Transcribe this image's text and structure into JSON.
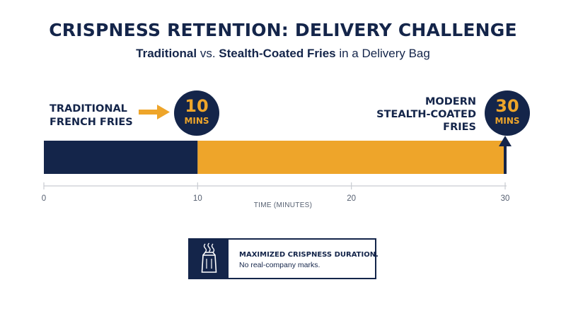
{
  "title": "CRISPNESS RETENTION: DELIVERY CHALLENGE",
  "subtitle": {
    "part1": "Traditional",
    "part2": " vs. ",
    "part3": "Stealth-Coated Fries",
    "part4": " in a Delivery Bag"
  },
  "labels": {
    "traditional_line1": "TRADITIONAL",
    "traditional_line2": "FRENCH FRIES",
    "modern_line1": "MODERN",
    "modern_line2": "STEALTH-COATED",
    "modern_line3": "FRIES"
  },
  "badges": {
    "traditional_num": "10",
    "traditional_unit": "MINS",
    "modern_num": "30",
    "modern_unit": "MINS"
  },
  "callout": {
    "title": "MAXIMIZED CRISPNESS DURATION.",
    "subtitle": "No real-company marks.",
    "icon": "takeout-bag-icon"
  },
  "colors": {
    "navy": "#14254a",
    "orange": "#eea52a",
    "axis": "#c9ccd2"
  },
  "chart_data": {
    "type": "bar",
    "orientation": "horizontal",
    "xlabel": "TIME (MINUTES)",
    "xlim": [
      0,
      30
    ],
    "ticks": [
      0,
      10,
      20,
      30
    ],
    "series": [
      {
        "name": "TRADITIONAL FRENCH FRIES",
        "start": 0,
        "end": 10,
        "color": "#14254a"
      },
      {
        "name": "MODERN STEALTH-COATED FRIES",
        "start": 10,
        "end": 30,
        "color": "#eea52a"
      }
    ],
    "markers": [
      {
        "value": 10,
        "label": "10 MINS"
      },
      {
        "value": 30,
        "label": "30 MINS"
      }
    ]
  }
}
